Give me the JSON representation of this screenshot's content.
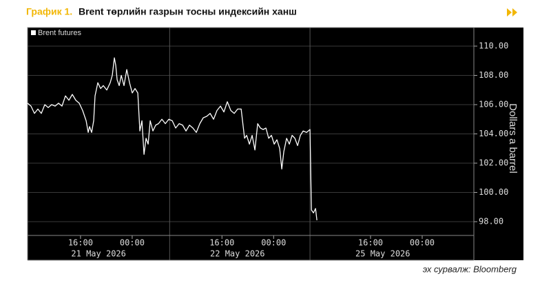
{
  "chart_data": {
    "type": "line",
    "title_prefix": "График 1.",
    "title": "Brent төрлийн газрын тосны индексийн ханш",
    "source": "эх сурвалж: Bloomberg",
    "y_label": "Dollars a barrel",
    "legend_position": "upper left",
    "grid": true,
    "ylim": [
      97.06,
      111.27
    ],
    "yticks": [
      {
        "value": 98,
        "label": "98.00"
      },
      {
        "value": 100,
        "label": "100.00"
      },
      {
        "value": 102,
        "label": "102.00"
      },
      {
        "value": 104,
        "label": "104.00"
      },
      {
        "value": 106,
        "label": "106.00"
      },
      {
        "value": 108,
        "label": "108.00"
      },
      {
        "value": 110,
        "label": "110.00"
      }
    ],
    "xlim": [
      0,
      69.1
    ],
    "xticks": [
      {
        "value": 8.2,
        "label": "16:00"
      },
      {
        "value": 16.2,
        "label": "00:00"
      },
      {
        "value": 30.1,
        "label": "16:00"
      },
      {
        "value": 38.1,
        "label": "00:00"
      },
      {
        "value": 53.1,
        "label": "16:00"
      },
      {
        "value": 61.1,
        "label": "00:00"
      }
    ],
    "x_dates": [
      {
        "value": 11,
        "label": "21 May 2026"
      },
      {
        "value": 32.5,
        "label": "22 May 2026"
      },
      {
        "value": 55,
        "label": "25 May 2026"
      }
    ],
    "x_dividers": [
      22,
      43.73
    ],
    "x": [
      0,
      0.53,
      1.07,
      1.6,
      2.13,
      2.67,
      3.2,
      3.73,
      4.27,
      4.8,
      5.33,
      5.87,
      6.4,
      6.93,
      7.47,
      8,
      8.53,
      9.07,
      9.39,
      9.6,
      9.92,
      10.24,
      10.45,
      10.88,
      11.31,
      11.73,
      12.27,
      12.8,
      13.12,
      13.44,
      13.65,
      13.87,
      14.19,
      14.51,
      14.93,
      15.36,
      15.79,
      16.21,
      16.64,
      17.07,
      17.39,
      17.71,
      18.03,
      18.35,
      18.67,
      18.99,
      19.41,
      19.84,
      20.27,
      20.8,
      21.33,
      21.87,
      22.4,
      22.93,
      23.47,
      24,
      24.53,
      25.07,
      25.6,
      26.13,
      26.67,
      27.2,
      27.73,
      28.27,
      28.8,
      29.33,
      29.87,
      30.4,
      30.93,
      31.47,
      32,
      32.53,
      33.07,
      33.6,
      33.92,
      34.35,
      34.77,
      35.2,
      35.63,
      36.05,
      36.48,
      36.91,
      37.33,
      37.76,
      38.19,
      38.61,
      39.04,
      39.36,
      39.68,
      40.11,
      40.53,
      40.96,
      41.39,
      41.81,
      42.24,
      42.67,
      43.2,
      43.73,
      43.95,
      44.27,
      44.59,
      44.8
    ],
    "series": [
      {
        "name": "Brent futures",
        "color": "#ffffff",
        "values": [
          106.1,
          105.9,
          105.4,
          105.7,
          105.4,
          106.0,
          105.8,
          106.0,
          105.9,
          106.1,
          105.9,
          106.6,
          106.3,
          106.7,
          106.3,
          106.1,
          105.6,
          104.9,
          104.1,
          104.5,
          104.1,
          104.9,
          106.6,
          107.5,
          107.1,
          107.3,
          107.0,
          107.5,
          108.0,
          109.2,
          108.7,
          107.7,
          107.3,
          108.0,
          107.3,
          108.4,
          107.5,
          106.8,
          107.1,
          106.8,
          104.2,
          104.9,
          102.6,
          103.7,
          103.3,
          104.9,
          104.2,
          104.6,
          104.7,
          105.0,
          104.7,
          105.0,
          104.9,
          104.4,
          104.7,
          104.6,
          104.2,
          104.6,
          104.4,
          104.1,
          104.7,
          105.1,
          105.2,
          105.4,
          105.0,
          105.6,
          105.9,
          105.5,
          106.2,
          105.6,
          105.4,
          105.7,
          105.7,
          103.7,
          103.9,
          103.3,
          103.9,
          102.9,
          104.7,
          104.4,
          104.3,
          104.4,
          103.7,
          103.9,
          103.3,
          103.6,
          103.0,
          101.6,
          102.8,
          103.7,
          103.3,
          103.9,
          103.7,
          103.2,
          103.9,
          104.2,
          104.1,
          104.3,
          98.8,
          98.6,
          98.9,
          98.1
        ]
      }
    ]
  }
}
